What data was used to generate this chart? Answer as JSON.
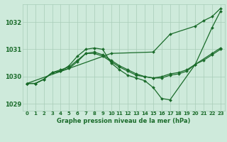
{
  "background_color": "#ceeadb",
  "grid_color": "#a8ccb8",
  "line_color": "#1a6b2a",
  "text_color": "#1a6b2a",
  "xlabel": "Graphe pression niveau de la mer (hPa)",
  "xlim": [
    -0.5,
    23.5
  ],
  "ylim": [
    1028.75,
    1032.65
  ],
  "yticks": [
    1029,
    1030,
    1031,
    1032
  ],
  "xticks": [
    0,
    1,
    2,
    3,
    4,
    5,
    6,
    7,
    8,
    9,
    10,
    11,
    12,
    13,
    14,
    15,
    16,
    17,
    18,
    19,
    20,
    21,
    22,
    23
  ],
  "series": [
    {
      "x": [
        0,
        10,
        15,
        17,
        20,
        21,
        22,
        23
      ],
      "y": [
        1029.75,
        1030.85,
        1030.9,
        1031.55,
        1031.85,
        1032.05,
        1032.2,
        1032.5
      ]
    },
    {
      "x": [
        0,
        1,
        2,
        3,
        4,
        5,
        6,
        7,
        8,
        9,
        10,
        11,
        12,
        13,
        14,
        15,
        16,
        17,
        20,
        22,
        23
      ],
      "y": [
        1029.75,
        1029.75,
        1029.9,
        1030.15,
        1030.2,
        1030.4,
        1030.75,
        1031.0,
        1031.05,
        1031.0,
        1030.5,
        1030.25,
        1030.05,
        1029.95,
        1029.85,
        1029.6,
        1029.2,
        1029.15,
        1030.45,
        1031.8,
        1032.4
      ]
    },
    {
      "x": [
        0,
        1,
        2,
        3,
        4,
        5,
        6,
        7,
        8,
        9,
        10,
        11,
        12,
        13,
        14,
        15,
        16,
        17,
        18,
        19,
        20,
        22,
        23
      ],
      "y": [
        1029.75,
        1029.75,
        1029.9,
        1030.15,
        1030.2,
        1030.3,
        1030.55,
        1030.85,
        1030.85,
        1030.75,
        1030.55,
        1030.35,
        1030.2,
        1030.05,
        1030.0,
        1029.95,
        1029.95,
        1030.05,
        1030.1,
        1030.2,
        1030.45,
        1030.85,
        1031.05
      ]
    },
    {
      "x": [
        0,
        1,
        2,
        3,
        4,
        5,
        6,
        7,
        8,
        9,
        10,
        11,
        12,
        13,
        14,
        15,
        16,
        17,
        18,
        19,
        20,
        21,
        22,
        23
      ],
      "y": [
        1029.75,
        1029.75,
        1029.9,
        1030.15,
        1030.25,
        1030.35,
        1030.6,
        1030.85,
        1030.9,
        1030.8,
        1030.6,
        1030.4,
        1030.25,
        1030.1,
        1030.0,
        1029.95,
        1030.0,
        1030.1,
        1030.15,
        1030.25,
        1030.45,
        1030.6,
        1030.8,
        1031.0
      ]
    }
  ]
}
